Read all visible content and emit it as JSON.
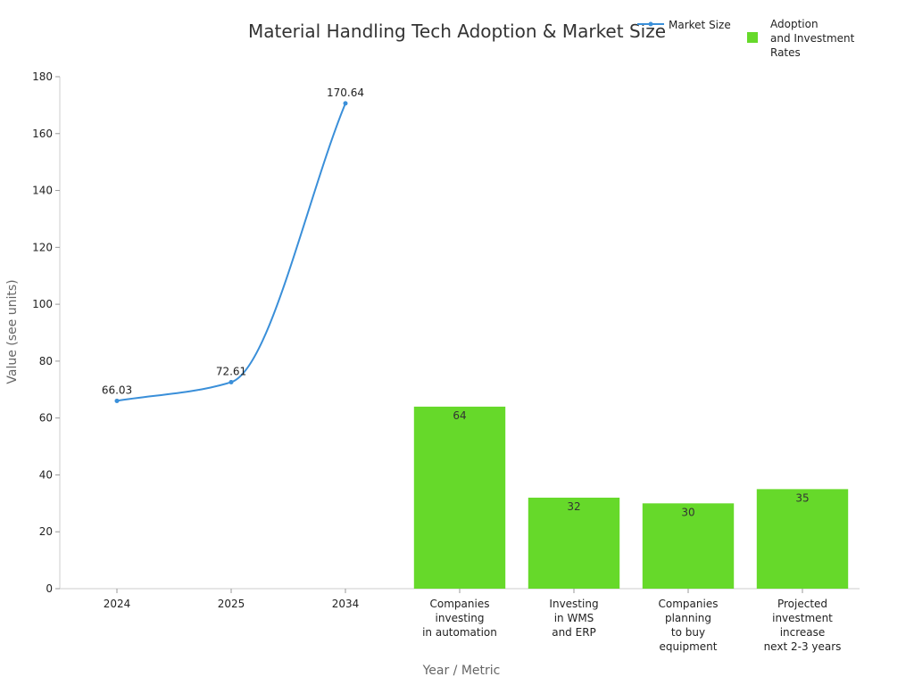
{
  "chart_data": {
    "type": "bar",
    "title": "Material Handling Tech Adoption & Market Size",
    "xlabel": "Year / Metric",
    "ylabel": "Value (see units)",
    "ylim": [
      0,
      180
    ],
    "yticks": [
      0,
      20,
      40,
      60,
      80,
      100,
      120,
      140,
      160,
      180
    ],
    "grid": false,
    "legend_position": "top-right",
    "categories": [
      [
        "2024"
      ],
      [
        "2025"
      ],
      [
        "2034"
      ],
      [
        "Companies",
        "investing",
        "in automation"
      ],
      [
        "Investing",
        "in WMS",
        "and ERP"
      ],
      [
        "Companies",
        "planning",
        "to buy",
        "equipment"
      ],
      [
        "Projected",
        "investment",
        "increase",
        "next 2-3 years"
      ]
    ],
    "series": [
      {
        "name": "Market Size",
        "type": "line",
        "color": "#3a8fd9",
        "points": [
          {
            "category": 0,
            "value": 66.03,
            "label": "66.03"
          },
          {
            "category": 1,
            "value": 72.61,
            "label": "72.61"
          },
          {
            "category": 2,
            "value": 170.64,
            "label": "170.64"
          }
        ]
      },
      {
        "name": [
          "Adoption",
          "and Investment",
          "Rates"
        ],
        "type": "bar",
        "color": "#66d92a",
        "points": [
          {
            "category": 3,
            "value": 64,
            "label": "64"
          },
          {
            "category": 4,
            "value": 32,
            "label": "32"
          },
          {
            "category": 5,
            "value": 30,
            "label": "30"
          },
          {
            "category": 6,
            "value": 35,
            "label": "35"
          }
        ]
      }
    ]
  }
}
